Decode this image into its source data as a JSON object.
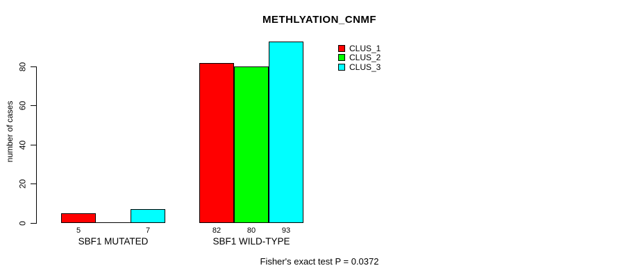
{
  "title": "METHLYATION_CNMF",
  "footer": "Fisher's exact test P = 0.0372",
  "chart_data": {
    "type": "bar",
    "title": "METHLYATION_CNMF",
    "xlabel": "",
    "ylabel": "number of cases",
    "categories": [
      "SBF1 MUTATED",
      "SBF1 WILD-TYPE"
    ],
    "series": [
      {
        "name": "CLUS_1",
        "color": "#ff0000",
        "values": [
          5,
          82
        ]
      },
      {
        "name": "CLUS_2",
        "color": "#00ff00",
        "values": [
          0,
          80
        ]
      },
      {
        "name": "CLUS_3",
        "color": "#00ffff",
        "values": [
          7,
          93
        ]
      }
    ],
    "bar_value_labels": [
      [
        "5",
        "",
        "7"
      ],
      [
        "82",
        "80",
        "93"
      ]
    ],
    "yticks": [
      0,
      20,
      40,
      60,
      80
    ],
    "ylim": [
      0,
      95
    ],
    "grid": false,
    "legend_position": "top-right",
    "annotation": "Fisher's exact test P = 0.0372"
  }
}
